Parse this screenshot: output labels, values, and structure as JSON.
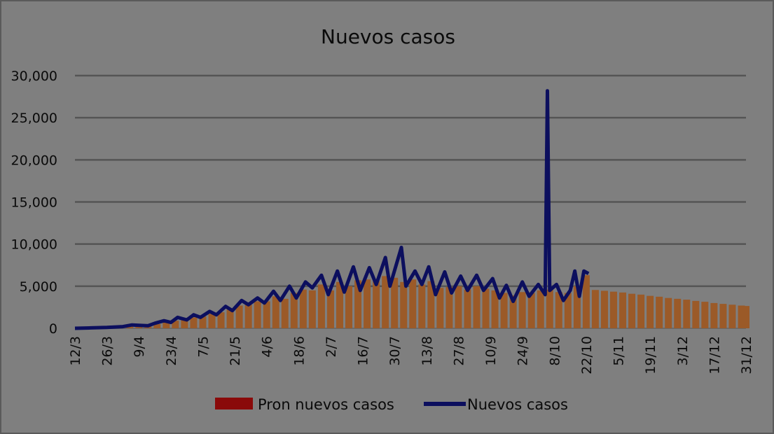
{
  "chart_data": {
    "type": "bar+line",
    "title": "Nuevos casos",
    "xlabel": "",
    "ylabel": "",
    "ylim": [
      0,
      30000
    ],
    "yticks": [
      "0",
      "5,000",
      "10,000",
      "15,000",
      "20,000",
      "25,000",
      "30,000"
    ],
    "ytick_values": [
      0,
      5000,
      10000,
      15000,
      20000,
      25000,
      30000
    ],
    "xticks": [
      "12/3",
      "26/3",
      "9/4",
      "23/4",
      "7/5",
      "21/5",
      "4/6",
      "18/6",
      "2/7",
      "16/7",
      "30/7",
      "13/8",
      "27/8",
      "10/9",
      "24/9",
      "8/10",
      "22/10",
      "5/11",
      "19/11",
      "3/12",
      "17/12",
      "31/12"
    ],
    "grid": true,
    "legend_position": "bottom",
    "colors": {
      "background": "#7f7f7f",
      "bars": "#9b5a28",
      "legend_bar": "#8a0a0a",
      "line": "#0c0f5e",
      "grid": "#555555"
    },
    "series": [
      {
        "name": "Pron nuevos casos",
        "type": "bar",
        "points": [
          [
            "12/3",
            0
          ],
          [
            "16/3",
            20
          ],
          [
            "20/3",
            50
          ],
          [
            "24/3",
            80
          ],
          [
            "28/3",
            100
          ],
          [
            "1/4",
            150
          ],
          [
            "5/4",
            250
          ],
          [
            "9/4",
            300
          ],
          [
            "13/4",
            300
          ],
          [
            "17/4",
            500
          ],
          [
            "21/4",
            700
          ],
          [
            "25/4",
            900
          ],
          [
            "29/4",
            1000
          ],
          [
            "3/5",
            1300
          ],
          [
            "7/5",
            1400
          ],
          [
            "11/5",
            1700
          ],
          [
            "15/5",
            1900
          ],
          [
            "19/5",
            2200
          ],
          [
            "23/5",
            2700
          ],
          [
            "27/5",
            2800
          ],
          [
            "31/5",
            3200
          ],
          [
            "4/6",
            3200
          ],
          [
            "8/6",
            3800
          ],
          [
            "12/6",
            3500
          ],
          [
            "16/6",
            4200
          ],
          [
            "20/6",
            4600
          ],
          [
            "24/6",
            4500
          ],
          [
            "28/6",
            5200
          ],
          [
            "2/7",
            4500
          ],
          [
            "6/7",
            5500
          ],
          [
            "10/7",
            5000
          ],
          [
            "14/7",
            5700
          ],
          [
            "18/7",
            5800
          ],
          [
            "22/7",
            5600
          ],
          [
            "26/7",
            6200
          ],
          [
            "30/7",
            6000
          ],
          [
            "3/8",
            5500
          ],
          [
            "7/8",
            5800
          ],
          [
            "11/8",
            5200
          ],
          [
            "15/8",
            5600
          ],
          [
            "19/8",
            4800
          ],
          [
            "23/8",
            4900
          ],
          [
            "27/8",
            5000
          ],
          [
            "31/8",
            4600
          ],
          [
            "4/9",
            5000
          ],
          [
            "8/9",
            4700
          ],
          [
            "12/9",
            4500
          ],
          [
            "16/9",
            4200
          ],
          [
            "20/9",
            3900
          ],
          [
            "24/9",
            4300
          ],
          [
            "28/9",
            4200
          ],
          [
            "2/10",
            4500
          ],
          [
            "6/10",
            4600
          ],
          [
            "10/10",
            4300
          ],
          [
            "14/10",
            4200
          ],
          [
            "18/10",
            5000
          ],
          [
            "22/10",
            6300
          ],
          [
            "26/10",
            4550
          ],
          [
            "30/10",
            4450
          ],
          [
            "3/11",
            4350
          ],
          [
            "7/11",
            4250
          ],
          [
            "11/11",
            4100
          ],
          [
            "15/11",
            4000
          ],
          [
            "19/11",
            3850
          ],
          [
            "23/11",
            3750
          ],
          [
            "27/11",
            3600
          ],
          [
            "1/12",
            3500
          ],
          [
            "5/12",
            3400
          ],
          [
            "9/12",
            3250
          ],
          [
            "13/12",
            3150
          ],
          [
            "17/12",
            3000
          ],
          [
            "21/12",
            2900
          ],
          [
            "25/12",
            2800
          ],
          [
            "29/12",
            2700
          ],
          [
            "31/12",
            2650
          ]
        ]
      },
      {
        "name": "Nuevos casos",
        "type": "line",
        "points": [
          [
            "12/3",
            0
          ],
          [
            "19/3",
            50
          ],
          [
            "26/3",
            100
          ],
          [
            "2/4",
            200
          ],
          [
            "6/4",
            400
          ],
          [
            "9/4",
            350
          ],
          [
            "13/4",
            300
          ],
          [
            "16/4",
            600
          ],
          [
            "20/4",
            900
          ],
          [
            "23/4",
            700
          ],
          [
            "26/4",
            1300
          ],
          [
            "30/4",
            1000
          ],
          [
            "3/5",
            1600
          ],
          [
            "6/5",
            1300
          ],
          [
            "10/5",
            2000
          ],
          [
            "13/5",
            1600
          ],
          [
            "17/5",
            2600
          ],
          [
            "20/5",
            2100
          ],
          [
            "24/5",
            3300
          ],
          [
            "27/5",
            2800
          ],
          [
            "31/5",
            3600
          ],
          [
            "3/6",
            3000
          ],
          [
            "7/6",
            4400
          ],
          [
            "10/6",
            3300
          ],
          [
            "14/6",
            5000
          ],
          [
            "17/6",
            3600
          ],
          [
            "21/6",
            5500
          ],
          [
            "24/6",
            4800
          ],
          [
            "28/6",
            6300
          ],
          [
            "1/7",
            4000
          ],
          [
            "5/7",
            6800
          ],
          [
            "8/7",
            4300
          ],
          [
            "12/7",
            7300
          ],
          [
            "15/7",
            4500
          ],
          [
            "19/7",
            7200
          ],
          [
            "22/7",
            5200
          ],
          [
            "26/7",
            8400
          ],
          [
            "28/7",
            5000
          ],
          [
            "2/8",
            9600
          ],
          [
            "4/8",
            5000
          ],
          [
            "8/8",
            6800
          ],
          [
            "11/8",
            5200
          ],
          [
            "14/8",
            7300
          ],
          [
            "17/8",
            4000
          ],
          [
            "21/8",
            6700
          ],
          [
            "24/8",
            4200
          ],
          [
            "28/8",
            6200
          ],
          [
            "31/8",
            4500
          ],
          [
            "4/9",
            6300
          ],
          [
            "7/9",
            4500
          ],
          [
            "11/9",
            5900
          ],
          [
            "14/9",
            3600
          ],
          [
            "17/9",
            5100
          ],
          [
            "20/9",
            3200
          ],
          [
            "24/9",
            5500
          ],
          [
            "27/9",
            3800
          ],
          [
            "1/10",
            5200
          ],
          [
            "4/10",
            4000
          ],
          [
            "5/10",
            28200
          ],
          [
            "6/10",
            4500
          ],
          [
            "9/10",
            5200
          ],
          [
            "12/10",
            3300
          ],
          [
            "15/10",
            4500
          ],
          [
            "17/10",
            6800
          ],
          [
            "19/10",
            3800
          ],
          [
            "21/10",
            6800
          ],
          [
            "23/10",
            6500
          ]
        ]
      }
    ]
  }
}
